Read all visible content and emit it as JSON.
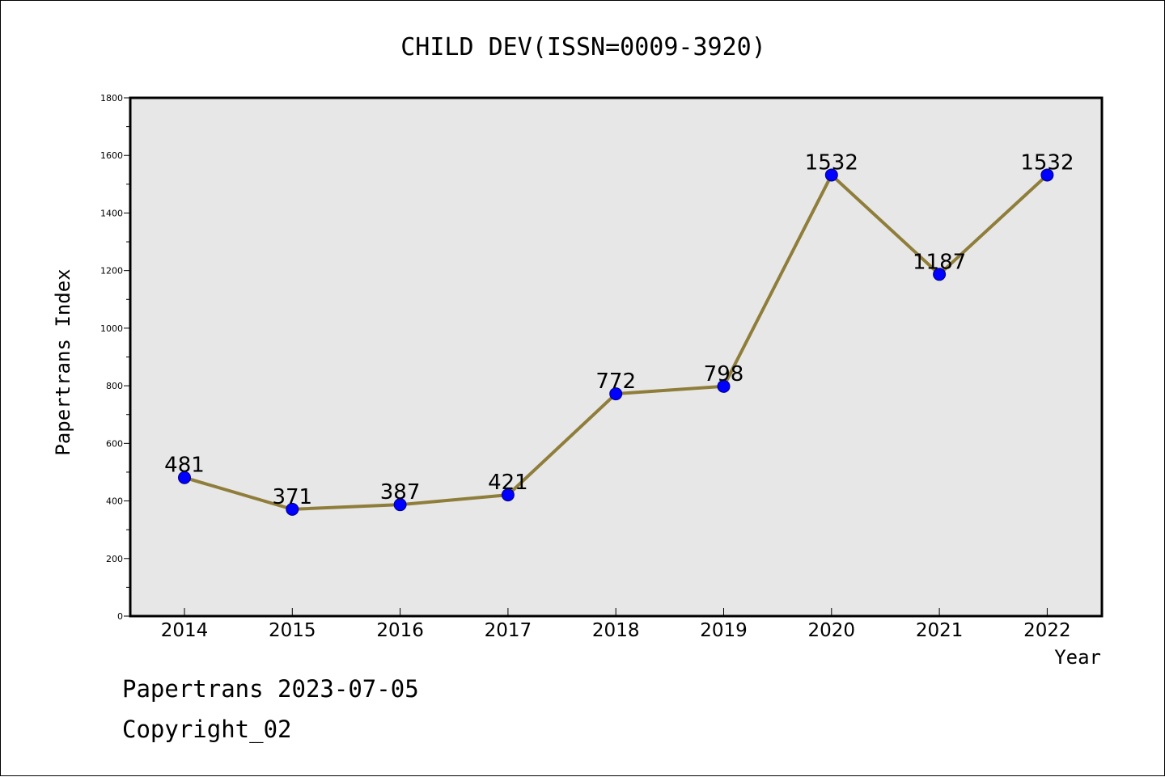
{
  "chart_data": {
    "type": "line",
    "title": "CHILD DEV(ISSN=0009-3920)",
    "xlabel": "Year",
    "ylabel": "Papertrans Index",
    "categories": [
      "2014",
      "2015",
      "2016",
      "2017",
      "2018",
      "2019",
      "2020",
      "2021",
      "2022"
    ],
    "series": [
      {
        "values": [
          481,
          371,
          387,
          421,
          772,
          798,
          1532,
          1187,
          1532
        ]
      }
    ],
    "data_labels": [
      "481",
      "371",
      "387",
      "421",
      "772",
      "798",
      "1532",
      "1187",
      "1532"
    ],
    "y_ticks": [
      0,
      200,
      400,
      600,
      800,
      1000,
      1200,
      1400,
      1600,
      1800
    ],
    "y_tick_labels": [
      "0",
      "200",
      "400",
      "600",
      "800",
      "1000",
      "1200",
      "1400",
      "1600",
      "1800"
    ],
    "ylim": [
      0,
      1800
    ],
    "grid": false,
    "legend": "none",
    "colors": {
      "plot_background": "#e7e7e7",
      "line": "#8f7d3a",
      "marker": "#0000ff",
      "axis": "#000000"
    }
  },
  "footer": {
    "date_line": "Papertrans 2023-07-05",
    "copyright": "Copyright_02"
  }
}
